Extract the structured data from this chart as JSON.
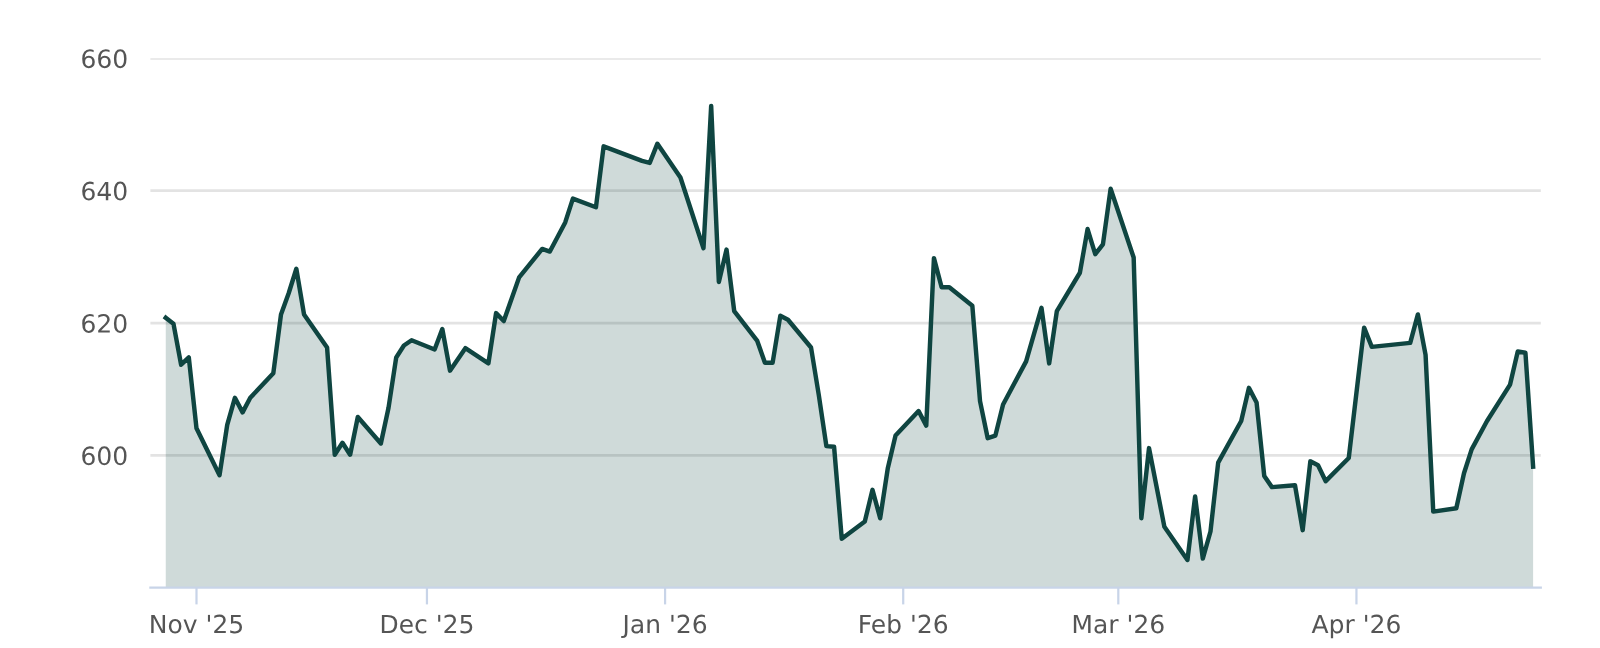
{
  "chart_data": {
    "type": "area",
    "x": [
      "2025-10-28",
      "2025-10-29",
      "2025-10-30",
      "2025-10-31",
      "2025-11-01",
      "2025-11-04",
      "2025-11-05",
      "2025-11-06",
      "2025-11-07",
      "2025-11-08",
      "2025-11-11",
      "2025-11-12",
      "2025-11-13",
      "2025-11-14",
      "2025-11-15",
      "2025-11-18",
      "2025-11-19",
      "2025-11-20",
      "2025-11-21",
      "2025-11-22",
      "2025-11-25",
      "2025-11-26",
      "2025-11-27",
      "2025-11-28",
      "2025-11-29",
      "2025-12-02",
      "2025-12-03",
      "2025-12-04",
      "2025-12-06",
      "2025-12-09",
      "2025-12-10",
      "2025-12-11",
      "2025-12-13",
      "2025-12-16",
      "2025-12-17",
      "2025-12-19",
      "2025-12-20",
      "2025-12-23",
      "2025-12-24",
      "2025-12-29",
      "2025-12-30",
      "2025-12-31",
      "2026-01-03",
      "2026-01-06",
      "2026-01-07",
      "2026-01-08",
      "2026-01-09",
      "2026-01-10",
      "2026-01-13",
      "2026-01-14",
      "2026-01-15",
      "2026-01-16",
      "2026-01-17",
      "2026-01-20",
      "2026-01-21",
      "2026-01-22",
      "2026-01-23",
      "2026-01-24",
      "2026-01-27",
      "2026-01-28",
      "2026-01-29",
      "2026-01-30",
      "2026-01-31",
      "2026-02-03",
      "2026-02-04",
      "2026-02-05",
      "2026-02-06",
      "2026-02-07",
      "2026-02-10",
      "2026-02-11",
      "2026-02-12",
      "2026-02-13",
      "2026-02-14",
      "2026-02-17",
      "2026-02-19",
      "2026-02-20",
      "2026-02-21",
      "2026-02-24",
      "2026-02-25",
      "2026-02-26",
      "2026-02-27",
      "2026-02-28",
      "2026-03-03",
      "2026-03-04",
      "2026-03-05",
      "2026-03-07",
      "2026-03-10",
      "2026-03-11",
      "2026-03-12",
      "2026-03-13",
      "2026-03-14",
      "2026-03-17",
      "2026-03-18",
      "2026-03-19",
      "2026-03-20",
      "2026-03-21",
      "2026-03-24",
      "2026-03-25",
      "2026-03-26",
      "2026-03-27",
      "2026-03-28",
      "2026-03-31",
      "2026-04-02",
      "2026-04-03",
      "2026-04-08",
      "2026-04-09",
      "2026-04-10",
      "2026-04-11",
      "2026-04-14",
      "2026-04-15",
      "2026-04-16",
      "2026-04-18",
      "2026-04-21",
      "2026-04-22",
      "2026-04-23",
      "2026-04-24"
    ],
    "series": [
      {
        "color": "#0f4541",
        "values": [
          620.8,
          619.9,
          613.7,
          614.8,
          604.1,
          597.0,
          604.6,
          608.7,
          606.5,
          608.7,
          612.4,
          621.3,
          624.5,
          628.2,
          621.3,
          616.3,
          600.1,
          601.9,
          600.1,
          605.8,
          601.8,
          607.2,
          614.8,
          616.6,
          617.4,
          616.0,
          619.1,
          612.8,
          616.2,
          613.9,
          621.5,
          620.3,
          626.9,
          631.2,
          630.8,
          635.2,
          638.8,
          637.5,
          646.7,
          644.5,
          644.2,
          647.1,
          642.0,
          631.3,
          652.8,
          626.2,
          631.1,
          621.8,
          617.3,
          614.0,
          614.0,
          621.1,
          620.5,
          616.3,
          609.2,
          601.4,
          601.3,
          587.4,
          590.0,
          594.8,
          590.5,
          598.1,
          603.0,
          606.7,
          604.5,
          629.8,
          625.4,
          625.4,
          622.6,
          608.2,
          602.6,
          603.0,
          607.7,
          614.2,
          622.3,
          613.9,
          621.8,
          627.6,
          634.2,
          630.4,
          631.9,
          640.3,
          629.9,
          590.5,
          601.1,
          589.2,
          584.2,
          593.8,
          584.4,
          588.5,
          598.9,
          605.2,
          610.2,
          608.0,
          596.9,
          595.2,
          595.5,
          588.7,
          599.1,
          598.5,
          596.1,
          599.6,
          619.3,
          616.4,
          617.0,
          621.3,
          615.2,
          591.5,
          592.0,
          597.3,
          600.9,
          605.2,
          610.7,
          615.7,
          615.5,
          598.3
        ]
      }
    ],
    "xlim": [
      "2025-10-26",
      "2026-04-25"
    ],
    "xticks": [
      {
        "value": "2025-11-01",
        "label": "Nov '25"
      },
      {
        "value": "2025-12-01",
        "label": "Dec '25"
      },
      {
        "value": "2026-01-01",
        "label": "Jan '26"
      },
      {
        "value": "2026-02-01",
        "label": "Feb '26"
      },
      {
        "value": "2026-03-01",
        "label": "Mar '26"
      },
      {
        "value": "2026-04-01",
        "label": "Apr '26"
      }
    ],
    "ylim": [
      580,
      660
    ],
    "yticks": [
      600,
      620,
      640,
      660
    ],
    "grid": "y",
    "marker": "none",
    "line_style": "solid"
  }
}
